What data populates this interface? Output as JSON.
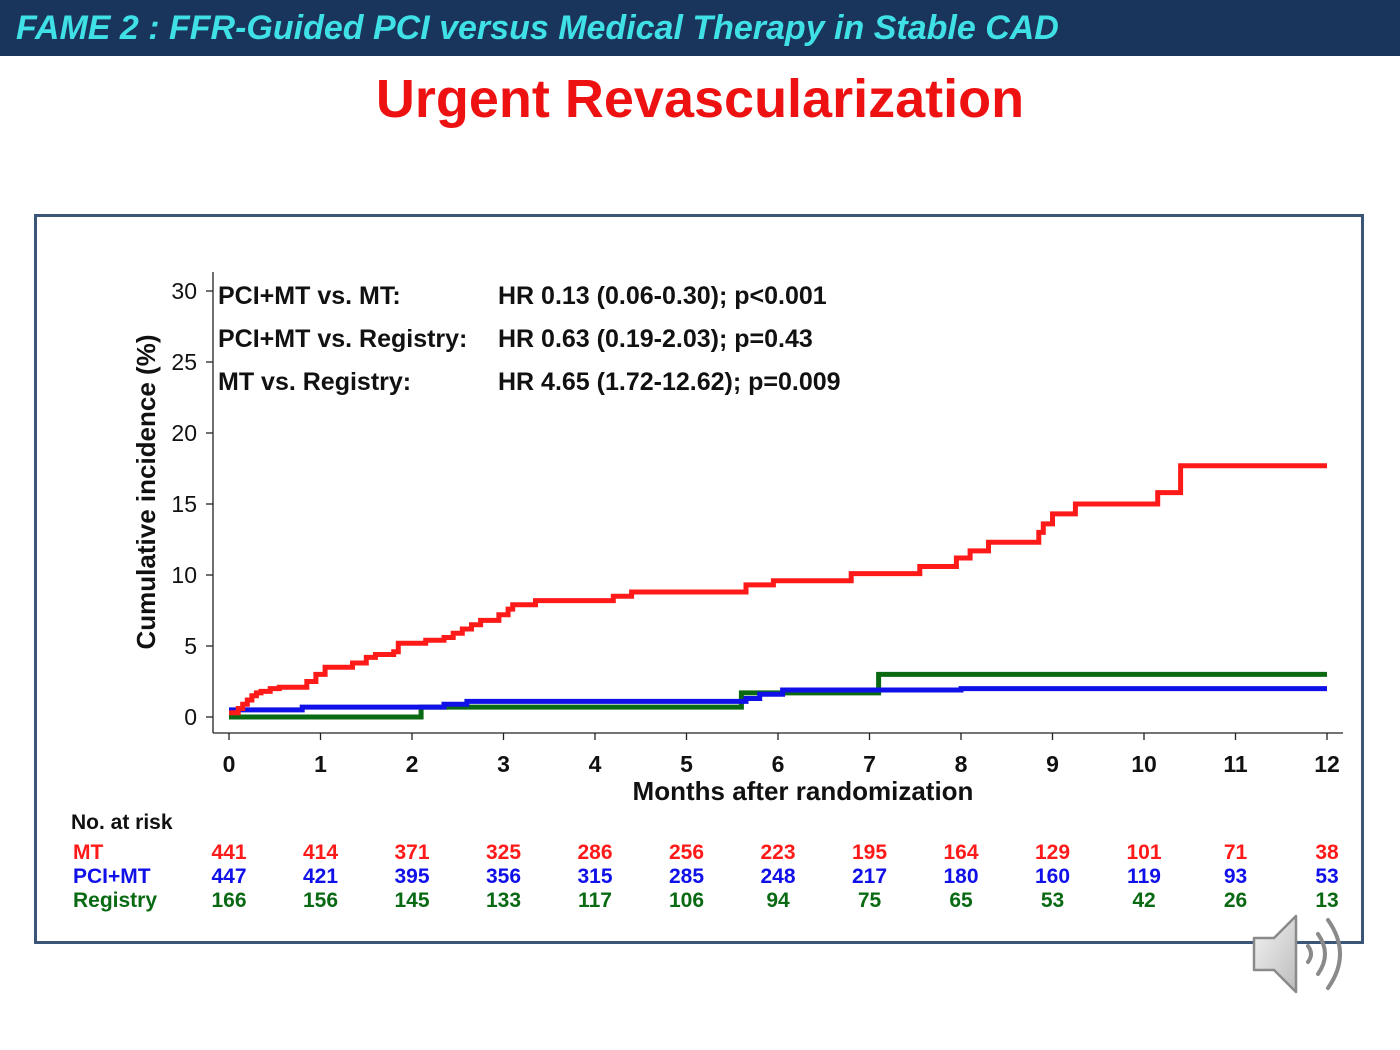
{
  "header": {
    "title": "FAME 2 : FFR-Guided PCI versus Medical Therapy in Stable CAD"
  },
  "slide": {
    "title": "Urgent Revascularization"
  },
  "colors": {
    "header_bg": "#1a355c",
    "header_text": "#3fe0e6",
    "title": "#ee1111",
    "MT": "#ff1a1a",
    "PCI_MT": "#1010e8",
    "Registry": "#0a6a14",
    "frame": "#3a5578"
  },
  "icons": {
    "speaker": "speaker-icon"
  },
  "chart_data": {
    "type": "line",
    "step": true,
    "xlabel": "Months after randomization",
    "ylabel": "Cumulative incidence (%)",
    "xlim": [
      0,
      12
    ],
    "ylim": [
      0,
      30
    ],
    "xticks": [
      0,
      1,
      2,
      3,
      4,
      5,
      6,
      7,
      8,
      9,
      10,
      11,
      12
    ],
    "yticks": [
      0,
      5,
      10,
      15,
      20,
      25,
      30
    ],
    "grid": false,
    "annotations": [
      {
        "label": "PCI+MT vs. MT:",
        "value": "HR 0.13 (0.06-0.30); p<0.001"
      },
      {
        "label": "PCI+MT vs. Registry:",
        "value": "HR 0.63 (0.19-2.03); p=0.43"
      },
      {
        "label": "MT vs. Registry:",
        "value": "HR 4.65 (1.72-12.62); p=0.009"
      }
    ],
    "series": [
      {
        "name": "MT",
        "color": "#ff1a1a",
        "x": [
          0,
          0.1,
          0.15,
          0.2,
          0.25,
          0.3,
          0.35,
          0.45,
          0.55,
          0.65,
          0.85,
          0.95,
          1.05,
          1.35,
          1.5,
          1.6,
          1.8,
          1.85,
          2.15,
          2.35,
          2.45,
          2.55,
          2.65,
          2.75,
          2.95,
          3.05,
          3.1,
          3.35,
          4.2,
          4.4,
          5.65,
          5.95,
          6.8,
          7.55,
          7.95,
          8.1,
          8.3,
          8.85,
          8.9,
          9.0,
          9.25,
          10.15,
          10.4,
          12
        ],
        "y": [
          0.3,
          0.6,
          0.9,
          1.2,
          1.5,
          1.7,
          1.8,
          2.0,
          2.1,
          2.1,
          2.5,
          3.0,
          3.5,
          3.8,
          4.2,
          4.4,
          4.6,
          5.2,
          5.4,
          5.6,
          5.9,
          6.2,
          6.5,
          6.8,
          7.2,
          7.6,
          7.9,
          8.2,
          8.5,
          8.8,
          9.3,
          9.6,
          10.1,
          10.6,
          11.2,
          11.7,
          12.3,
          13.0,
          13.6,
          14.3,
          15.0,
          15.8,
          17.7,
          17.7
        ]
      },
      {
        "name": "PCI+MT",
        "color": "#1010e8",
        "x": [
          0,
          0.8,
          2.35,
          2.6,
          5.65,
          5.8,
          6.05,
          8.0,
          12
        ],
        "y": [
          0.5,
          0.7,
          0.9,
          1.1,
          1.3,
          1.6,
          1.9,
          2.0,
          2.0
        ]
      },
      {
        "name": "Registry",
        "color": "#0a6a14",
        "x": [
          0,
          2.1,
          5.6,
          7.1,
          12
        ],
        "y": [
          0.0,
          0.7,
          1.7,
          3.0,
          3.0
        ]
      }
    ],
    "at_risk": {
      "title": "No. at risk",
      "rows": [
        {
          "name": "MT",
          "color": "#ff1a1a",
          "values": [
            441,
            414,
            371,
            325,
            286,
            256,
            223,
            195,
            164,
            129,
            101,
            71,
            38
          ]
        },
        {
          "name": "PCI+MT",
          "color": "#1010e8",
          "values": [
            447,
            421,
            395,
            356,
            315,
            285,
            248,
            217,
            180,
            160,
            119,
            93,
            53
          ]
        },
        {
          "name": "Registry",
          "color": "#0a6a14",
          "values": [
            166,
            156,
            145,
            133,
            117,
            106,
            94,
            75,
            65,
            53,
            42,
            26,
            13
          ]
        }
      ]
    }
  }
}
